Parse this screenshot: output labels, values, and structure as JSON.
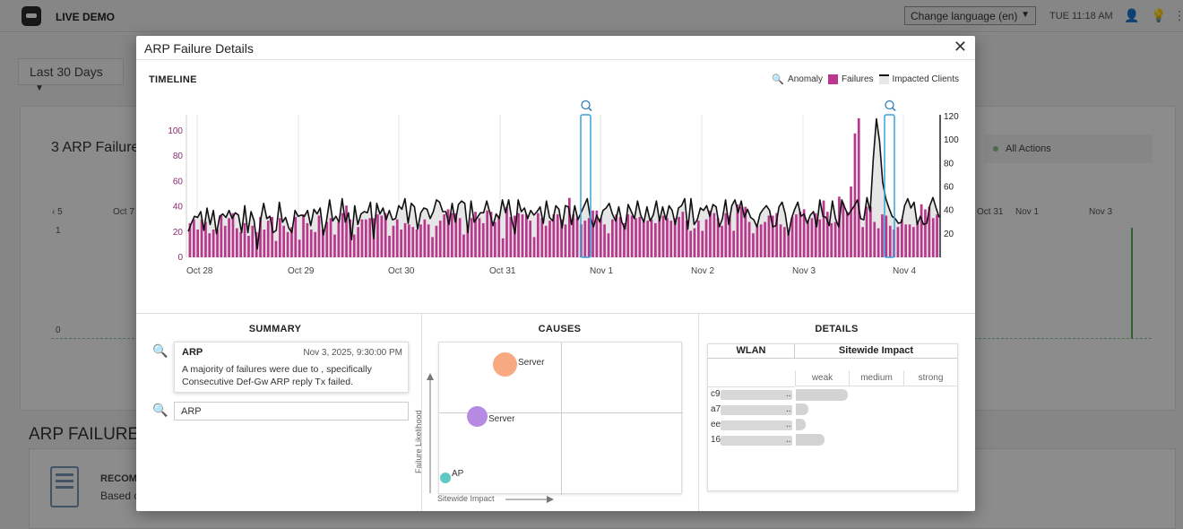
{
  "topbar": {
    "org_name": "LIVE DEMO",
    "language_label": "Change language (en)",
    "clock": "TUE 11:18 AM"
  },
  "background": {
    "range_label": "Last 30 Days",
    "card_title": "3 ARP Failure",
    "legend_label": "All Actions",
    "axis_labels": [
      "‹ 5",
      "Oct 7",
      "Oct 31",
      "Nov 1",
      "Nov 3"
    ],
    "y_labels": [
      "1",
      "0"
    ],
    "section_title": "ARP FAILURE",
    "recommendation_title": "RECOMM",
    "recommendation_text": "Based c"
  },
  "modal": {
    "title": "ARP Failure Details",
    "timeline_label": "TIMELINE",
    "legend": {
      "anomaly": "Anomaly",
      "failures": "Failures",
      "impacted": "Impacted Clients"
    },
    "colors": {
      "failures": "#b9388e",
      "impacted_line": "#111111",
      "impacted_fill": "#e6e6e6",
      "anomaly": "#3aa4dd"
    }
  },
  "chart_data": {
    "type": "bar",
    "title": "TIMELINE",
    "x_tick_labels": [
      "Oct 28",
      "Oct 29",
      "Oct 30",
      "Oct 31",
      "Nov 1",
      "Nov 2",
      "Nov 3",
      "Nov 4"
    ],
    "y_left_ticks": [
      0,
      20,
      40,
      60,
      80,
      100
    ],
    "y_right_ticks": [
      20,
      40,
      60,
      80,
      100,
      120
    ],
    "ylim_left": [
      0,
      115
    ],
    "ylim_right": [
      0,
      120
    ],
    "series": [
      {
        "name": "Failures",
        "axis": "left",
        "values": [
          27,
          30,
          22,
          30,
          28,
          19,
          22,
          22,
          33,
          25,
          31,
          35,
          23,
          20,
          27,
          17,
          25,
          20,
          32,
          22,
          29,
          32,
          13,
          31,
          25,
          20,
          24,
          32,
          14,
          34,
          27,
          22,
          20,
          33,
          22,
          28,
          31,
          18,
          28,
          35,
          41,
          30,
          18,
          24,
          30,
          30,
          31,
          31,
          34,
          33,
          35,
          17,
          25,
          30,
          22,
          27,
          26,
          24,
          22,
          26,
          30,
          26,
          16,
          25,
          29,
          34,
          38,
          35,
          35,
          31,
          18,
          24,
          31,
          36,
          31,
          27,
          37,
          36,
          28,
          33,
          15,
          40,
          32,
          33,
          35,
          34,
          34,
          29,
          16,
          35,
          31,
          25,
          29,
          34,
          34,
          30,
          26,
          47,
          34,
          31,
          26,
          29,
          31,
          37,
          37,
          31,
          26,
          19,
          30,
          34,
          32,
          27,
          34,
          33,
          31,
          32,
          28,
          29,
          30,
          27,
          30,
          33,
          31,
          29,
          31,
          32,
          36,
          29,
          21,
          23,
          29,
          21,
          30,
          37,
          35,
          31,
          25,
          35,
          33,
          21,
          42,
          40,
          40,
          28,
          19,
          25,
          26,
          28,
          33,
          33,
          35,
          26,
          24,
          20,
          32,
          34,
          36,
          38,
          29,
          31,
          35,
          30,
          45,
          36,
          27,
          28,
          48,
          43,
          36,
          56,
          98,
          110,
          24,
          40,
          40,
          28,
          23,
          34,
          33,
          25,
          22,
          24,
          30,
          26,
          26,
          24,
          28,
          42,
          38,
          40,
          31,
          34
        ]
      },
      {
        "name": "Impacted Clients",
        "axis": "right",
        "values": [
          22,
          29,
          35,
          34,
          39,
          23,
          42,
          28,
          40,
          20,
          35,
          37,
          34,
          40,
          33,
          38,
          36,
          21,
          44,
          21,
          39,
          31,
          7,
          31,
          46,
          33,
          35,
          21,
          23,
          47,
          30,
          34,
          25,
          21,
          40,
          35,
          36,
          35,
          40,
          27,
          41,
          37,
          42,
          19,
          31,
          49,
          31,
          35,
          30,
          50,
          30,
          38,
          15,
          44,
          28,
          37,
          39,
          38,
          47,
          16,
          46,
          37,
          42,
          32,
          40,
          32,
          33,
          44,
          41,
          50,
          29,
          46,
          43,
          24,
          38,
          42,
          41,
          33,
          39,
          49,
          47,
          39,
          39,
          28,
          46,
          30,
          45,
          48,
          46,
          21,
          48,
          30,
          34,
          38,
          38,
          48,
          38,
          27,
          37,
          33,
          49,
          38,
          49,
          32,
          20,
          49,
          39,
          42,
          33,
          40,
          36,
          39,
          43,
          29,
          48,
          34,
          31,
          44,
          41,
          25,
          44,
          43,
          28,
          44,
          32,
          38,
          44,
          50,
          33,
          26,
          36,
          30,
          40,
          42,
          46,
          37,
          31,
          43,
          30,
          24,
          45,
          39,
          33,
          48,
          36,
          30,
          43,
          31,
          36,
          48,
          31,
          43,
          32,
          44,
          40,
          28,
          42,
          44,
          50,
          24,
          50,
          28,
          32,
          42,
          40,
          44,
          35,
          45,
          43,
          26,
          33,
          49,
          28,
          44,
          49,
          38,
          48,
          34,
          41,
          34,
          32,
          26,
          37,
          41,
          44,
          40,
          26,
          27,
          43,
          47,
          37,
          19,
          33,
          41,
          47,
          35,
          37,
          29,
          36,
          39,
          26,
          49,
          35,
          34,
          27,
          48,
          33,
          26,
          49,
          42,
          36,
          40,
          44,
          49,
          33,
          32,
          51,
          39,
          84,
          118,
          99,
          64,
          50,
          42,
          35,
          33,
          29,
          30,
          44,
          50,
          42,
          47,
          28,
          35,
          28,
          29,
          44,
          51,
          42,
          34
        ]
      }
    ],
    "anomalies": [
      "Nov 1",
      "Nov 4"
    ]
  },
  "summary": {
    "title": "SUMMARY",
    "card_title": "ARP",
    "card_time": "Nov 3, 2025, 9:30:00 PM",
    "card_desc": "A majority of failures were due to , specifically Consecutive Def-Gw ARP reply Tx failed.",
    "search_value": "ARP"
  },
  "causes": {
    "title": "CAUSES",
    "bubbles": [
      {
        "label": "Server",
        "color": "#f7a982"
      },
      {
        "label": "Server",
        "color": "#b689e3"
      },
      {
        "label": "AP",
        "color": "#5ec9c4"
      }
    ],
    "y_axis_label": "Failure Likelihood",
    "x_axis_label": "Sitewide Impact"
  },
  "details": {
    "title": "DETAILS",
    "col_wlan": "WLAN",
    "col_impact": "Sitewide Impact",
    "levels": [
      "weak",
      "medium",
      "strong"
    ],
    "rows": [
      {
        "prefix": "c9",
        "suffix": "..",
        "impact": 0.32
      },
      {
        "prefix": "a7",
        "suffix": "..",
        "impact": 0.08
      },
      {
        "prefix": "ee",
        "suffix": "..",
        "impact": 0.06
      },
      {
        "prefix": "16",
        "suffix": "..",
        "impact": 0.18
      }
    ]
  }
}
